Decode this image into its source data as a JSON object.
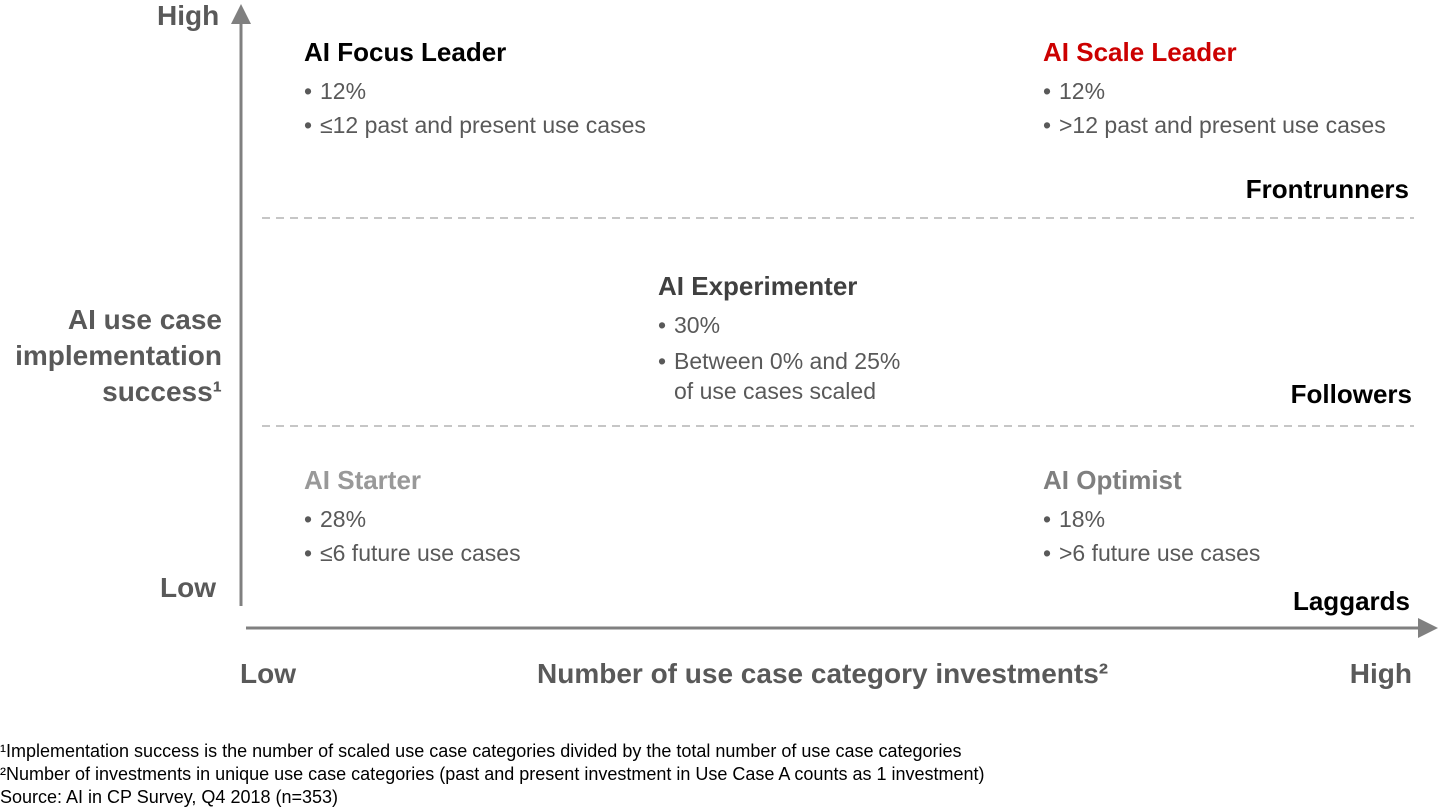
{
  "axes": {
    "y_high": "High",
    "y_low": "Low",
    "y_title_lines": [
      "AI use case",
      "implementation",
      "success¹"
    ],
    "x_low": "Low",
    "x_high": "High",
    "x_title": "Number of use case category investments²"
  },
  "tiers": {
    "frontrunners": "Frontrunners",
    "followers": "Followers",
    "laggards": "Laggards"
  },
  "segments": {
    "focus_leader": {
      "title": "AI Focus Leader",
      "color": "#000000",
      "items": [
        "12%",
        "≤12 past and present use cases"
      ]
    },
    "scale_leader": {
      "title": "AI Scale Leader",
      "color": "#cc0000",
      "items": [
        "12%",
        ">12 past and present use cases"
      ]
    },
    "experimenter": {
      "title": "AI Experimenter",
      "color": "#404040",
      "items": [
        "30%",
        "Between 0% and 25%",
        "of use cases scaled"
      ]
    },
    "starter": {
      "title": "AI Starter",
      "color": "#999999",
      "items": [
        "28%",
        "≤6 future use cases"
      ]
    },
    "optimist": {
      "title": "AI Optimist",
      "color": "#7f7f7f",
      "items": [
        "18%",
        ">6 future use cases"
      ]
    }
  },
  "footnotes": [
    "¹Implementation success is the number of scaled use case categories divided by the total number of use case categories",
    "²Number of investments in unique use case categories (past and present investment in Use Case A counts as 1 investment)",
    "Source: AI in CP Survey, Q4 2018 (n=353)"
  ]
}
